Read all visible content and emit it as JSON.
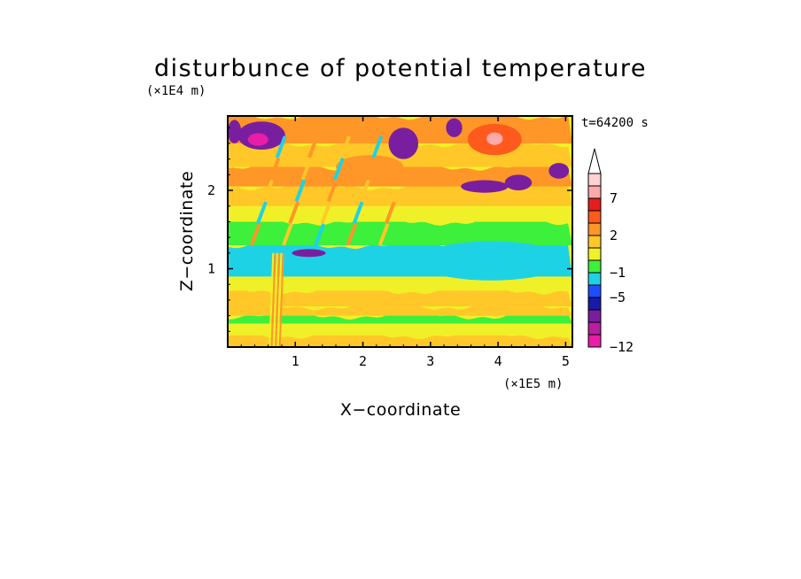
{
  "chart_data": {
    "type": "heatmap",
    "title": "disturbunce of potential temperature",
    "xlabel": "X−coordinate",
    "ylabel": "Z−coordinate",
    "x_unit": "(×1E5 m)",
    "y_unit": "(×1E4 m)",
    "time_label": "t=64200 s",
    "xlim": [
      0,
      5.1
    ],
    "ylim": [
      0,
      2.95
    ],
    "x_ticks": [
      "1",
      "2",
      "3",
      "4",
      "5"
    ],
    "y_ticks": [
      "1",
      "2"
    ],
    "colorbar": {
      "extend": "max",
      "colors": [
        "#e81ea8",
        "#b81ea0",
        "#7a1ea0",
        "#1a1aa8",
        "#1e4cff",
        "#1ed2e6",
        "#3cf03c",
        "#f0f028",
        "#ffc828",
        "#ff9628",
        "#ff5a1e",
        "#e61e1e",
        "#ffaaaa",
        "#ffd2d2"
      ],
      "labels": [
        "−12",
        "−5",
        "−1",
        "2",
        "7"
      ]
    },
    "layers": [
      {
        "z_range": [
          0.0,
          0.15
        ],
        "level": 2
      },
      {
        "z_range": [
          0.15,
          0.3
        ],
        "level": 1
      },
      {
        "z_range": [
          0.3,
          0.4
        ],
        "level": 0
      },
      {
        "z_range": [
          0.4,
          0.52
        ],
        "level": 2
      },
      {
        "z_range": [
          0.52,
          0.72
        ],
        "level": 2
      },
      {
        "z_range": [
          0.72,
          0.9
        ],
        "level": 1
      },
      {
        "z_range": [
          0.9,
          1.3
        ],
        "level": -1
      },
      {
        "z_range": [
          1.3,
          1.6
        ],
        "level": 0
      },
      {
        "z_range": [
          1.6,
          1.8
        ],
        "level": 1
      },
      {
        "z_range": [
          1.8,
          2.05
        ],
        "level": 2
      },
      {
        "z_range": [
          2.05,
          2.3
        ],
        "level": 3
      },
      {
        "z_range": [
          2.3,
          2.6
        ],
        "level": 2
      },
      {
        "z_range": [
          2.6,
          2.95
        ],
        "level": 3
      }
    ],
    "features": [
      {
        "x": 0.5,
        "z": 2.7,
        "rx": 0.35,
        "rz": 0.18,
        "level": -4
      },
      {
        "x": 0.45,
        "z": 2.65,
        "rx": 0.15,
        "rz": 0.08,
        "level": -6
      },
      {
        "x": 0.1,
        "z": 2.75,
        "rx": 0.1,
        "rz": 0.15,
        "level": -4
      },
      {
        "x": 2.6,
        "z": 2.6,
        "rx": 0.22,
        "rz": 0.2,
        "level": -4
      },
      {
        "x": 3.35,
        "z": 2.8,
        "rx": 0.12,
        "rz": 0.12,
        "level": -4
      },
      {
        "x": 3.95,
        "z": 2.65,
        "rx": 0.4,
        "rz": 0.2,
        "level": 4
      },
      {
        "x": 3.95,
        "z": 2.66,
        "rx": 0.12,
        "rz": 0.08,
        "level": 6
      },
      {
        "x": 3.8,
        "z": 2.05,
        "rx": 0.35,
        "rz": 0.08,
        "level": -4
      },
      {
        "x": 4.3,
        "z": 2.1,
        "rx": 0.2,
        "rz": 0.1,
        "level": -4
      },
      {
        "x": 4.9,
        "z": 2.25,
        "rx": 0.15,
        "rz": 0.1,
        "level": -4
      },
      {
        "x": 3.9,
        "z": 1.1,
        "rx": 1.1,
        "rz": 0.25,
        "level": -1
      },
      {
        "x": 1.2,
        "z": 1.2,
        "rx": 0.25,
        "rz": 0.05,
        "level": -4
      },
      {
        "x": 2.1,
        "z": 2.3,
        "rx": 0.5,
        "rz": 0.15,
        "level": 3
      }
    ]
  }
}
